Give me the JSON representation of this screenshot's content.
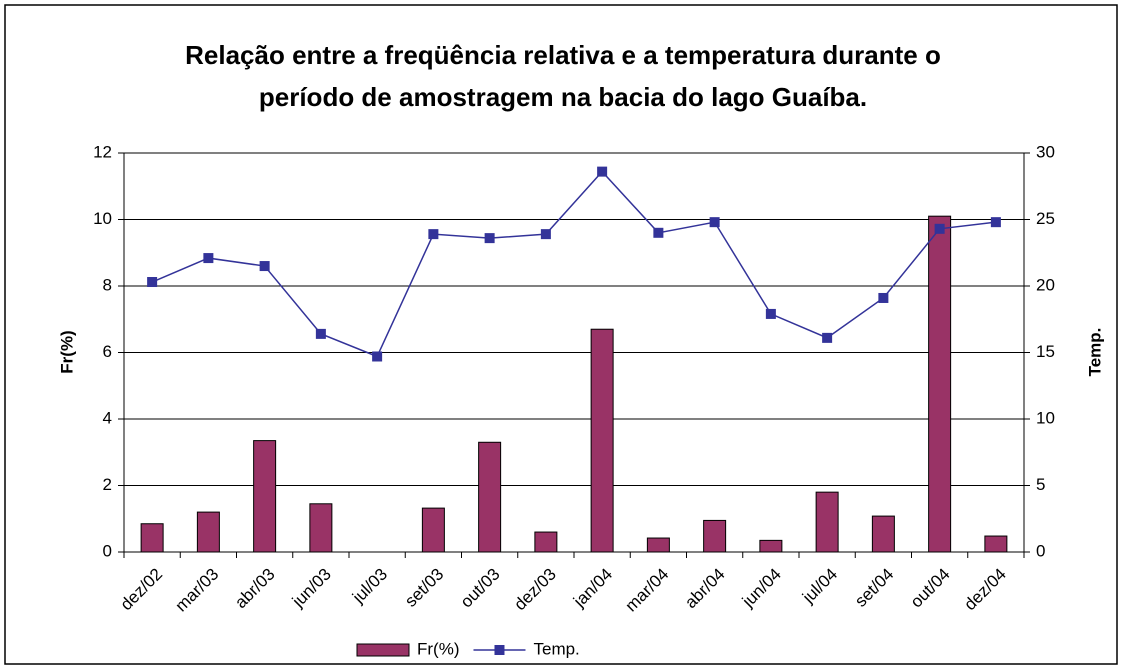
{
  "chart_data": {
    "type": "bar",
    "title": "Relação entre a freqüência relativa e a temperatura durante o período de amostragem na bacia do lago Guaíba.",
    "categories": [
      "dez/02",
      "mar/03",
      "abr/03",
      "jun/03",
      "jul/03",
      "set/03",
      "out/03",
      "dez/03",
      "jan/04",
      "mar/04",
      "abr/04",
      "jun/04",
      "jul/04",
      "set/04",
      "out/04",
      "dez/04"
    ],
    "series": [
      {
        "name": "Fr(%)",
        "type": "bar",
        "color": "#993366",
        "values": [
          0.85,
          1.2,
          3.35,
          1.45,
          0,
          1.32,
          3.3,
          0.6,
          6.7,
          0.42,
          0.95,
          0.35,
          1.8,
          1.08,
          10.1,
          0.48
        ]
      },
      {
        "name": "Temp.",
        "type": "line",
        "axis": "y2",
        "color": "#333399",
        "values": [
          20.3,
          22.1,
          21.5,
          16.4,
          14.7,
          23.9,
          23.6,
          23.9,
          28.6,
          24.0,
          24.8,
          17.9,
          16.1,
          19.1,
          24.3,
          24.8
        ]
      }
    ],
    "ylabel": "Fr(%)",
    "y2label": "Temp.",
    "ylim": [
      0,
      12
    ],
    "yticks": [
      0,
      2,
      4,
      6,
      8,
      10,
      12
    ],
    "y2lim": [
      0,
      30
    ],
    "y2ticks": [
      0,
      5,
      10,
      15,
      20,
      25,
      30
    ],
    "grid": true,
    "legend": "bottom"
  }
}
